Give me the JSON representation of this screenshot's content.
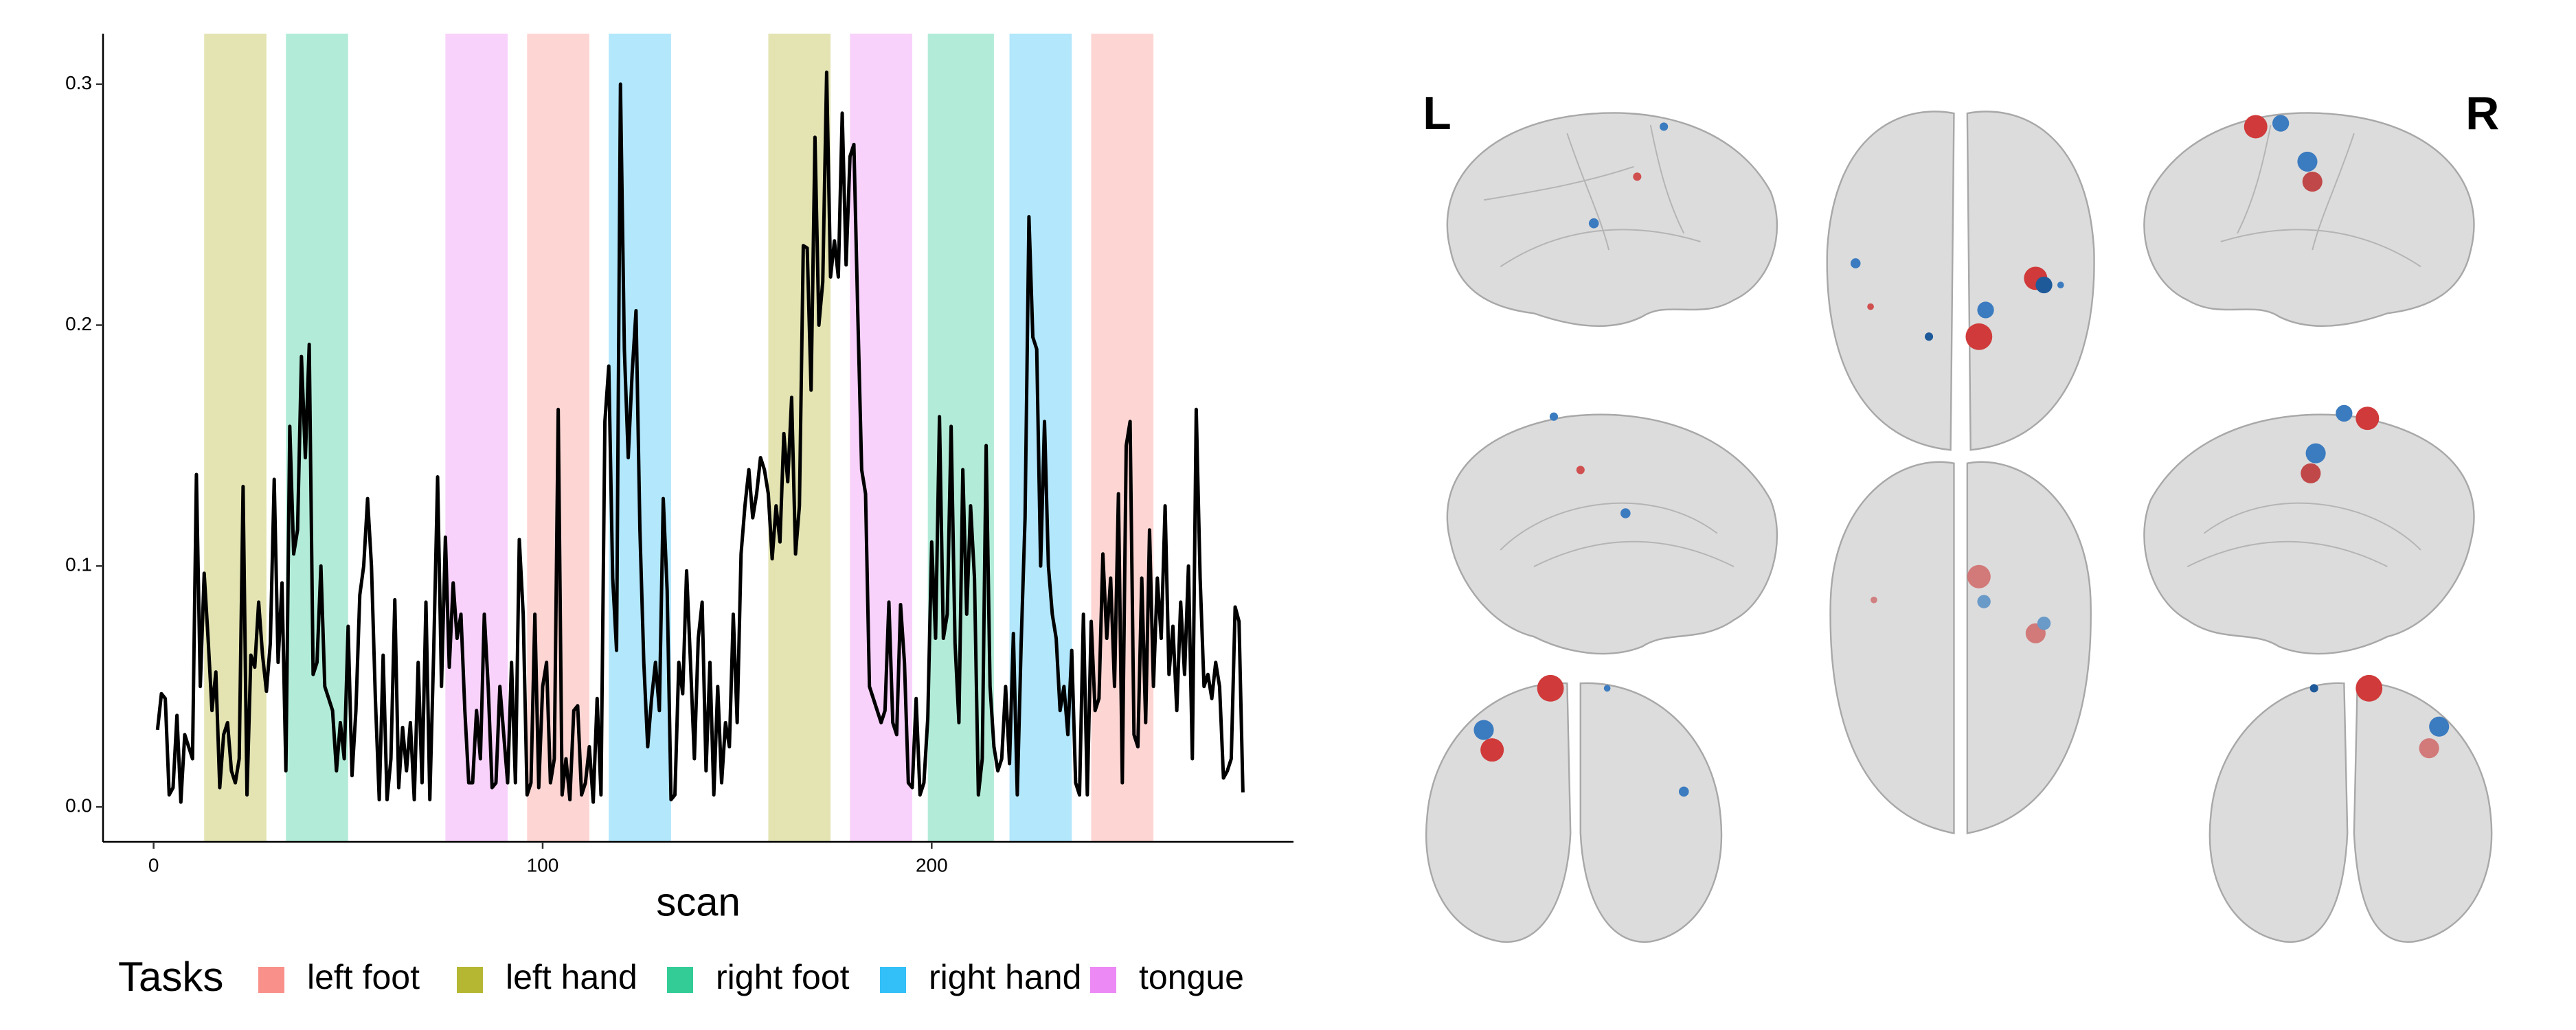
{
  "chart_data": {
    "type": "line",
    "xlabel": "scan",
    "color": "#000000",
    "xlim": [
      -13,
      293
    ],
    "ylim": [
      -0.0145,
      0.321
    ],
    "xticks": [
      0,
      100,
      200
    ],
    "yticks": [
      {
        "value": 0,
        "label": "0.0"
      },
      0.1,
      0.2,
      0.3
    ],
    "x": [
      1,
      2,
      3,
      4,
      5,
      6,
      7,
      8,
      9,
      10,
      11,
      12,
      13,
      14,
      15,
      16,
      17,
      18,
      19,
      20,
      21,
      22,
      23,
      24,
      25,
      26,
      27,
      28,
      29,
      30,
      31,
      32,
      33,
      34,
      35,
      36,
      37,
      38,
      39,
      40,
      41,
      42,
      43,
      44,
      45,
      46,
      47,
      48,
      49,
      50,
      51,
      52,
      53,
      54,
      55,
      56,
      57,
      58,
      59,
      60,
      61,
      62,
      63,
      64,
      65,
      66,
      67,
      68,
      69,
      70,
      71,
      72,
      73,
      74,
      75,
      76,
      77,
      78,
      79,
      80,
      81,
      82,
      83,
      84,
      85,
      86,
      87,
      88,
      89,
      90,
      91,
      92,
      93,
      94,
      95,
      96,
      97,
      98,
      99,
      100,
      101,
      102,
      103,
      104,
      105,
      106,
      107,
      108,
      109,
      110,
      111,
      112,
      113,
      114,
      115,
      116,
      117,
      118,
      119,
      120,
      121,
      122,
      123,
      124,
      125,
      126,
      127,
      128,
      129,
      130,
      131,
      132,
      133,
      134,
      135,
      136,
      137,
      138,
      139,
      140,
      141,
      142,
      143,
      144,
      145,
      146,
      147,
      148,
      149,
      150,
      151,
      152,
      153,
      154,
      155,
      156,
      157,
      158,
      159,
      160,
      161,
      162,
      163,
      164,
      165,
      166,
      167,
      168,
      169,
      170,
      171,
      172,
      173,
      174,
      175,
      176,
      177,
      178,
      179,
      180,
      181,
      182,
      183,
      184,
      185,
      186,
      187,
      188,
      189,
      190,
      191,
      192,
      193,
      194,
      195,
      196,
      197,
      198,
      199,
      200,
      201,
      202,
      203,
      204,
      205,
      206,
      207,
      208,
      209,
      210,
      211,
      212,
      213,
      214,
      215,
      216,
      217,
      218,
      219,
      220,
      221,
      222,
      223,
      224,
      225,
      226,
      227,
      228,
      229,
      230,
      231,
      232,
      233,
      234,
      235,
      236,
      237,
      238,
      239,
      240,
      241,
      242,
      243,
      244,
      245,
      246,
      247,
      248,
      249,
      250,
      251,
      252,
      253,
      254,
      255,
      256,
      257,
      258,
      259,
      260,
      261,
      262,
      263,
      264,
      265,
      266,
      267,
      268,
      269,
      270,
      271,
      272,
      273,
      274,
      275,
      276,
      277,
      278,
      279,
      280
    ],
    "values": [
      0.032,
      0.047,
      0.045,
      0.005,
      0.008,
      0.038,
      0.002,
      0.03,
      0.025,
      0.02,
      0.138,
      0.05,
      0.097,
      0.07,
      0.04,
      0.056,
      0.008,
      0.03,
      0.035,
      0.015,
      0.01,
      0.02,
      0.133,
      0.005,
      0.063,
      0.058,
      0.085,
      0.063,
      0.048,
      0.068,
      0.136,
      0.06,
      0.093,
      0.015,
      0.158,
      0.105,
      0.115,
      0.187,
      0.145,
      0.192,
      0.055,
      0.06,
      0.1,
      0.05,
      0.045,
      0.04,
      0.015,
      0.035,
      0.02,
      0.075,
      0.013,
      0.04,
      0.088,
      0.1,
      0.128,
      0.1,
      0.045,
      0.003,
      0.063,
      0.003,
      0.02,
      0.086,
      0.008,
      0.033,
      0.015,
      0.035,
      0.003,
      0.06,
      0.01,
      0.085,
      0.003,
      0.065,
      0.137,
      0.05,
      0.112,
      0.058,
      0.093,
      0.07,
      0.08,
      0.04,
      0.01,
      0.01,
      0.04,
      0.02,
      0.08,
      0.05,
      0.008,
      0.01,
      0.05,
      0.03,
      0.01,
      0.06,
      0.01,
      0.111,
      0.08,
      0.005,
      0.01,
      0.08,
      0.008,
      0.05,
      0.06,
      0.01,
      0.02,
      0.165,
      0.005,
      0.02,
      0.003,
      0.04,
      0.042,
      0.005,
      0.01,
      0.025,
      0.002,
      0.045,
      0.005,
      0.16,
      0.183,
      0.095,
      0.065,
      0.3,
      0.19,
      0.145,
      0.18,
      0.206,
      0.115,
      0.06,
      0.025,
      0.045,
      0.06,
      0.04,
      0.128,
      0.09,
      0.003,
      0.005,
      0.06,
      0.047,
      0.098,
      0.06,
      0.02,
      0.07,
      0.085,
      0.015,
      0.06,
      0.005,
      0.05,
      0.01,
      0.035,
      0.025,
      0.08,
      0.035,
      0.105,
      0.125,
      0.14,
      0.12,
      0.13,
      0.145,
      0.14,
      0.13,
      0.103,
      0.125,
      0.11,
      0.155,
      0.135,
      0.17,
      0.105,
      0.125,
      0.233,
      0.232,
      0.173,
      0.278,
      0.2,
      0.218,
      0.305,
      0.22,
      0.235,
      0.22,
      0.288,
      0.225,
      0.27,
      0.275,
      0.205,
      0.14,
      0.13,
      0.05,
      0.045,
      0.04,
      0.035,
      0.04,
      0.085,
      0.035,
      0.03,
      0.084,
      0.06,
      0.01,
      0.008,
      0.045,
      0.005,
      0.01,
      0.037,
      0.11,
      0.07,
      0.162,
      0.07,
      0.08,
      0.158,
      0.068,
      0.035,
      0.14,
      0.08,
      0.125,
      0.095,
      0.005,
      0.02,
      0.15,
      0.05,
      0.025,
      0.015,
      0.02,
      0.05,
      0.018,
      0.072,
      0.005,
      0.068,
      0.12,
      0.245,
      0.195,
      0.19,
      0.1,
      0.16,
      0.1,
      0.08,
      0.07,
      0.04,
      0.05,
      0.03,
      0.065,
      0.01,
      0.005,
      0.08,
      0.005,
      0.077,
      0.04,
      0.045,
      0.105,
      0.07,
      0.095,
      0.05,
      0.13,
      0.01,
      0.15,
      0.16,
      0.03,
      0.025,
      0.095,
      0.035,
      0.115,
      0.05,
      0.095,
      0.07,
      0.125,
      0.055,
      0.075,
      0.04,
      0.085,
      0.055,
      0.1,
      0.02,
      0.165,
      0.095,
      0.05,
      0.055,
      0.045,
      0.06,
      0.05,
      0.012,
      0.015,
      0.02,
      0.083,
      0.077,
      0.006
    ],
    "legend": {
      "title": "Tasks",
      "names": [
        "left foot",
        "left hand",
        "right foot",
        "right hand",
        "tongue"
      ],
      "colors": [
        "#F8766D",
        "#A3A500",
        "#00BF7D",
        "#00B0F6",
        "#E76BF3"
      ]
    },
    "blocks": [
      {
        "task": 1,
        "start": 13,
        "end": 29
      },
      {
        "task": 2,
        "start": 34,
        "end": 50
      },
      {
        "task": 4,
        "start": 75,
        "end": 91
      },
      {
        "task": 0,
        "start": 96,
        "end": 112
      },
      {
        "task": 3,
        "start": 117,
        "end": 133
      },
      {
        "task": 1,
        "start": 158,
        "end": 174
      },
      {
        "task": 4,
        "start": 179,
        "end": 195
      },
      {
        "task": 2,
        "start": 199,
        "end": 216
      },
      {
        "task": 3,
        "start": 220,
        "end": 236
      },
      {
        "task": 0,
        "start": 241,
        "end": 257
      }
    ]
  },
  "brain_view": {
    "left": "L",
    "right": "R"
  }
}
